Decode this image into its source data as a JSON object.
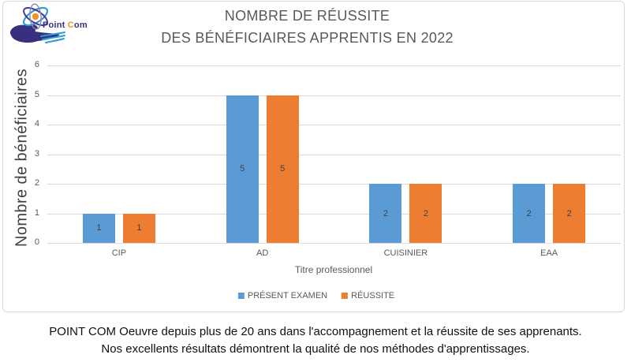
{
  "logo": {
    "brand_prefix": "Point ",
    "brand_c": "C",
    "brand_suffix": "om"
  },
  "header": {
    "title_line1": "NOMBRE DE RÉUSSITE",
    "title_line2": "DES BÉNÉFICIAIRES APPRENTIS EN 2022"
  },
  "chart_data": {
    "type": "bar",
    "title": "NOMBRE DE RÉUSSITE DES BÉNÉFICIAIRES APPRENTIS EN 2022",
    "categories": [
      "CIP",
      "AD",
      "CUISINIER",
      "EAA"
    ],
    "series": [
      {
        "name": "PRÉSENT EXAMEN",
        "color": "#5B9BD5",
        "values": [
          1,
          5,
          2,
          2
        ]
      },
      {
        "name": "RÉUSSITE",
        "color": "#ED7D31",
        "values": [
          1,
          5,
          2,
          2
        ]
      }
    ],
    "xlabel": "Titre professionnel",
    "ylabel": "Nombre de bénéficiaires",
    "ylim": [
      0,
      6
    ],
    "yticks": [
      0,
      1,
      2,
      3,
      4,
      5,
      6
    ],
    "grid": true,
    "legend_position": "bottom",
    "data_labels": "center",
    "gridline_color": "#DADADA",
    "label_color": "#404040",
    "axis_text_color": "#595959"
  },
  "footer": {
    "line1": "POINT COM Oeuvre depuis plus de 20 ans dans l'accompagnement et la réussite de ses apprenants.",
    "line2": "Nos excellents résultats démontrent la qualité de nos méthodes d'apprentissages."
  }
}
